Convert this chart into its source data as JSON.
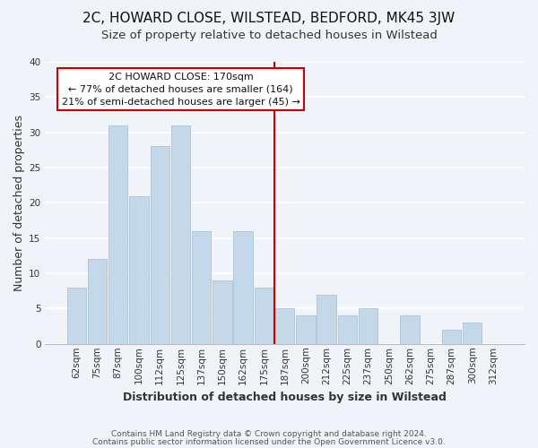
{
  "title": "2C, HOWARD CLOSE, WILSTEAD, BEDFORD, MK45 3JW",
  "subtitle": "Size of property relative to detached houses in Wilstead",
  "xlabel": "Distribution of detached houses by size in Wilstead",
  "ylabel": "Number of detached properties",
  "bar_color": "#c5d8ea",
  "bar_edge_color": "#a8c4d8",
  "categories": [
    "62sqm",
    "75sqm",
    "87sqm",
    "100sqm",
    "112sqm",
    "125sqm",
    "137sqm",
    "150sqm",
    "162sqm",
    "175sqm",
    "187sqm",
    "200sqm",
    "212sqm",
    "225sqm",
    "237sqm",
    "250sqm",
    "262sqm",
    "275sqm",
    "287sqm",
    "300sqm",
    "312sqm"
  ],
  "values": [
    8,
    12,
    31,
    21,
    28,
    31,
    16,
    9,
    16,
    8,
    5,
    4,
    7,
    4,
    5,
    0,
    4,
    0,
    2,
    3,
    0
  ],
  "ylim": [
    0,
    40
  ],
  "yticks": [
    0,
    5,
    10,
    15,
    20,
    25,
    30,
    35,
    40
  ],
  "marker_label": "2C HOWARD CLOSE: 170sqm",
  "annotation_line1": "← 77% of detached houses are smaller (164)",
  "annotation_line2": "21% of semi-detached houses are larger (45) →",
  "annotation_box_color": "#ffffff",
  "annotation_border_color": "#cc0000",
  "vline_color": "#cc0000",
  "footer_line1": "Contains HM Land Registry data © Crown copyright and database right 2024.",
  "footer_line2": "Contains public sector information licensed under the Open Government Licence v3.0.",
  "background_color": "#f0f4f8",
  "plot_bg_color": "#f0f4f8",
  "grid_color": "#ffffff",
  "title_fontsize": 11,
  "subtitle_fontsize": 9.5,
  "axis_label_fontsize": 9,
  "tick_fontsize": 7.5,
  "annotation_fontsize": 8,
  "footer_fontsize": 6.5,
  "vline_x": 9.5
}
